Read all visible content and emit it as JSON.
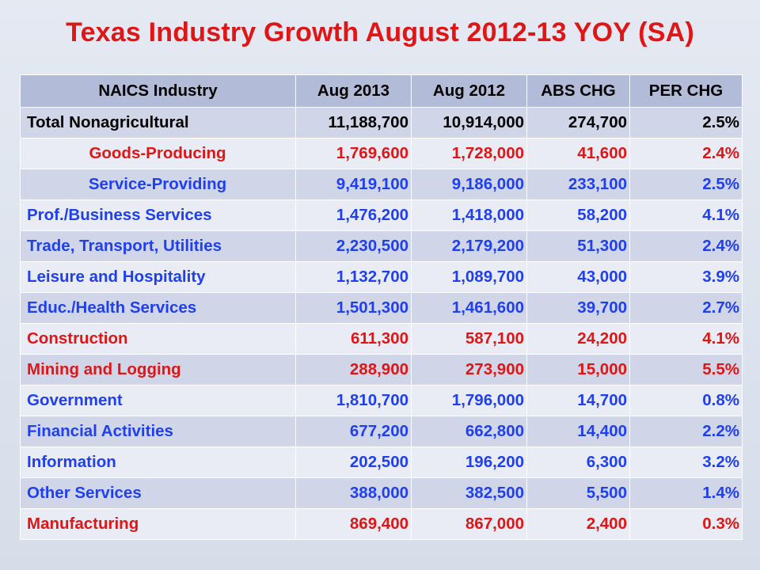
{
  "chart_data": {
    "type": "table",
    "title": "Texas Industry Growth August 2012-13 YOY (SA)",
    "columns": [
      "NAICS Industry",
      "Aug 2013",
      "Aug 2012",
      "ABS CHG",
      "PER CHG"
    ],
    "colors": {
      "title": "#e01515",
      "black": "#000000",
      "red": "#e01515",
      "blue": "#1f3ff0",
      "header_bg": "#b2bcd8",
      "row_odd_bg": "#d0d6e8",
      "row_even_bg": "#e9ecf5"
    },
    "rows": [
      {
        "industry": "Total Nonagricultural",
        "aug_2013": "11,188,700",
        "aug_2012": "10,914,000",
        "abs_chg": "274,700",
        "per_chg": "2.5%",
        "color": "black",
        "align": "left"
      },
      {
        "industry": "Goods-Producing",
        "aug_2013": "1,769,600",
        "aug_2012": "1,728,000",
        "abs_chg": "41,600",
        "per_chg": "2.4%",
        "color": "red",
        "align": "center"
      },
      {
        "industry": "Service-Providing",
        "aug_2013": "9,419,100",
        "aug_2012": "9,186,000",
        "abs_chg": "233,100",
        "per_chg": "2.5%",
        "color": "blue",
        "align": "center"
      },
      {
        "industry": "Prof./Business Services",
        "aug_2013": "1,476,200",
        "aug_2012": "1,418,000",
        "abs_chg": "58,200",
        "per_chg": "4.1%",
        "color": "blue",
        "align": "left"
      },
      {
        "industry": "Trade, Transport, Utilities",
        "aug_2013": "2,230,500",
        "aug_2012": "2,179,200",
        "abs_chg": "51,300",
        "per_chg": "2.4%",
        "color": "blue",
        "align": "left"
      },
      {
        "industry": "Leisure and Hospitality",
        "aug_2013": "1,132,700",
        "aug_2012": "1,089,700",
        "abs_chg": "43,000",
        "per_chg": "3.9%",
        "color": "blue",
        "align": "left"
      },
      {
        "industry": "Educ./Health Services",
        "aug_2013": "1,501,300",
        "aug_2012": "1,461,600",
        "abs_chg": "39,700",
        "per_chg": "2.7%",
        "color": "blue",
        "align": "left"
      },
      {
        "industry": "Construction",
        "aug_2013": "611,300",
        "aug_2012": "587,100",
        "abs_chg": "24,200",
        "per_chg": "4.1%",
        "color": "red",
        "align": "left"
      },
      {
        "industry": "Mining and Logging",
        "aug_2013": "288,900",
        "aug_2012": "273,900",
        "abs_chg": "15,000",
        "per_chg": "5.5%",
        "color": "red",
        "align": "left"
      },
      {
        "industry": "Government",
        "aug_2013": "1,810,700",
        "aug_2012": "1,796,000",
        "abs_chg": "14,700",
        "per_chg": "0.8%",
        "color": "blue",
        "align": "left"
      },
      {
        "industry": "Financial Activities",
        "aug_2013": "677,200",
        "aug_2012": "662,800",
        "abs_chg": "14,400",
        "per_chg": "2.2%",
        "color": "blue",
        "align": "left"
      },
      {
        "industry": "Information",
        "aug_2013": "202,500",
        "aug_2012": "196,200",
        "abs_chg": "6,300",
        "per_chg": "3.2%",
        "color": "blue",
        "align": "left"
      },
      {
        "industry": "Other Services",
        "aug_2013": "388,000",
        "aug_2012": "382,500",
        "abs_chg": "5,500",
        "per_chg": "1.4%",
        "color": "blue",
        "align": "left"
      },
      {
        "industry": "Manufacturing",
        "aug_2013": "869,400",
        "aug_2012": "867,000",
        "abs_chg": "2,400",
        "per_chg": "0.3%",
        "color": "red",
        "align": "left"
      }
    ]
  }
}
